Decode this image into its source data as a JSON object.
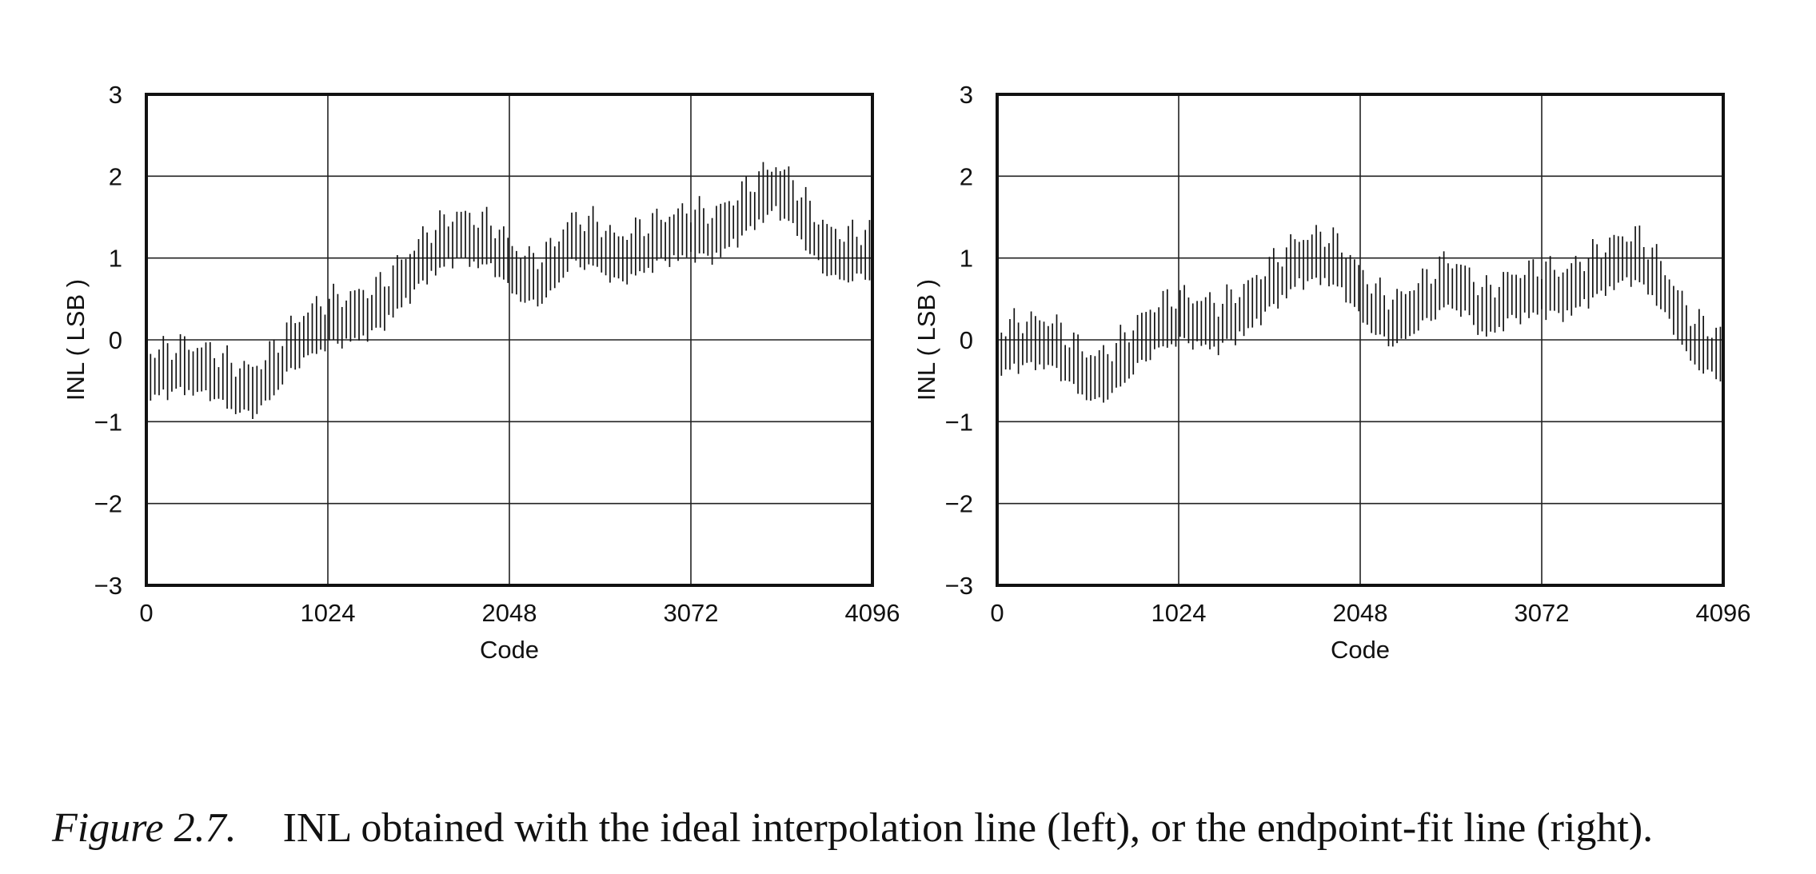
{
  "caption": {
    "label": "Figure 2.7.",
    "text": "INL obtained with the ideal interpolation line (left), or the endpoint-fit line (right)."
  },
  "chart_data": [
    {
      "type": "line",
      "title": "",
      "xlabel": "Code",
      "ylabel": "INL ( LSB )",
      "xlim": [
        0,
        4096
      ],
      "ylim": [
        -3,
        3
      ],
      "xticks": [
        0,
        1024,
        2048,
        3072,
        4096
      ],
      "xtick_labels": [
        "0",
        "1024",
        "2048",
        "3072",
        "4096"
      ],
      "yticks": [
        3,
        2,
        1,
        0,
        -1,
        -2,
        -3
      ],
      "ytick_labels": [
        "3",
        "2",
        "1",
        "0",
        "−1",
        "−2",
        "−3"
      ],
      "grid": true,
      "rendering": "vertical ranges per code group",
      "series": [
        {
          "trend_x": [
            0,
            200,
            350,
            500,
            600,
            700,
            800,
            900,
            1024,
            1150,
            1300,
            1450,
            1600,
            1750,
            1850,
            1950,
            2048,
            2150,
            2250,
            2400,
            2550,
            2650,
            2750,
            2900,
            3072,
            3200,
            3350,
            3450,
            3550,
            3650,
            3750,
            3850,
            3950,
            4096
          ],
          "trend_y": [
            -0.4,
            -0.3,
            -0.35,
            -0.55,
            -0.6,
            -0.4,
            -0.1,
            0.1,
            0.25,
            0.3,
            0.4,
            0.75,
            1.1,
            1.3,
            1.25,
            1.2,
            0.95,
            0.75,
            0.8,
            1.25,
            1.2,
            1.0,
            1.1,
            1.25,
            1.35,
            1.3,
            1.55,
            1.75,
            1.9,
            1.7,
            1.35,
            1.1,
            1.05,
            1.1
          ],
          "band_width": 0.45
        }
      ]
    },
    {
      "type": "line",
      "title": "",
      "xlabel": "Code",
      "ylabel": "INL ( LSB )",
      "xlim": [
        0,
        4096
      ],
      "ylim": [
        -3,
        3
      ],
      "xticks": [
        0,
        1024,
        2048,
        3072,
        4096
      ],
      "xtick_labels": [
        "0",
        "1024",
        "2048",
        "3072",
        "4096"
      ],
      "yticks": [
        3,
        2,
        1,
        0,
        -1,
        -2,
        -3
      ],
      "ytick_labels": [
        "3",
        "2",
        "1",
        "0",
        "−1",
        "−2",
        "−3"
      ],
      "grid": true,
      "rendering": "vertical ranges per code group",
      "series": [
        {
          "trend_x": [
            0,
            150,
            300,
            450,
            550,
            650,
            800,
            900,
            1024,
            1150,
            1250,
            1400,
            1550,
            1700,
            1850,
            1950,
            2048,
            2150,
            2250,
            2400,
            2550,
            2650,
            2750,
            2900,
            3072,
            3200,
            3350,
            3500,
            3600,
            3700,
            3800,
            3900,
            4000,
            4096
          ],
          "trend_y": [
            -0.1,
            0.0,
            0.0,
            -0.3,
            -0.45,
            -0.35,
            0.0,
            0.2,
            0.3,
            0.25,
            0.2,
            0.4,
            0.7,
            1.0,
            1.05,
            0.9,
            0.6,
            0.35,
            0.25,
            0.5,
            0.75,
            0.6,
            0.35,
            0.55,
            0.65,
            0.6,
            0.8,
            1.0,
            1.05,
            0.85,
            0.5,
            0.1,
            -0.1,
            -0.15
          ],
          "band_width": 0.45
        }
      ]
    }
  ]
}
